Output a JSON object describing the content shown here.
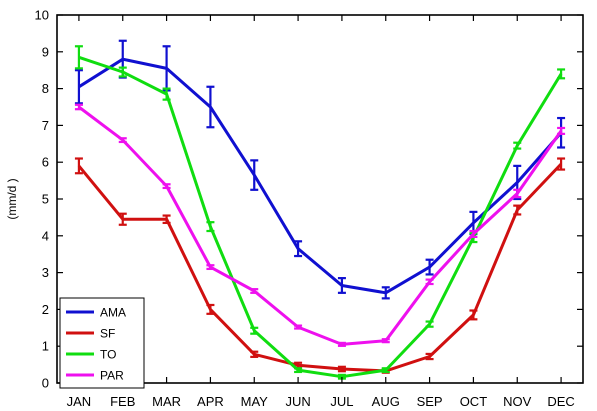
{
  "chart_data": {
    "type": "line",
    "title": "",
    "xlabel": "",
    "ylabel": "(mm/d )",
    "categories": [
      "JAN",
      "FEB",
      "MAR",
      "APR",
      "MAY",
      "JUN",
      "JUL",
      "AUG",
      "SEP",
      "OCT",
      "NOV",
      "DEC"
    ],
    "ylim": [
      0,
      10
    ],
    "yticks": [
      0,
      1,
      2,
      3,
      4,
      5,
      6,
      7,
      8,
      9,
      10
    ],
    "grid": false,
    "legend_position": "bottom-left",
    "series": [
      {
        "name": "AMA",
        "color": "#1010d0",
        "values": [
          8.05,
          8.8,
          8.55,
          7.5,
          5.65,
          3.65,
          2.65,
          2.45,
          3.15,
          4.35,
          5.45,
          6.8
        ],
        "errors": [
          0.45,
          0.5,
          0.6,
          0.55,
          0.4,
          0.2,
          0.2,
          0.15,
          0.2,
          0.3,
          0.45,
          0.4
        ]
      },
      {
        "name": "SF",
        "color": "#d01010",
        "values": [
          5.9,
          4.45,
          4.45,
          2.0,
          0.78,
          0.48,
          0.38,
          0.33,
          0.72,
          1.85,
          4.7,
          5.95
        ],
        "errors": [
          0.2,
          0.15,
          0.1,
          0.12,
          0.07,
          0.07,
          0.06,
          0.05,
          0.07,
          0.12,
          0.12,
          0.15
        ]
      },
      {
        "name": "TO",
        "color": "#10dd10",
        "values": [
          8.85,
          8.45,
          7.85,
          4.25,
          1.42,
          0.35,
          0.17,
          0.35,
          1.6,
          3.95,
          6.45,
          8.4
        ],
        "errors": [
          0.3,
          0.12,
          0.15,
          0.12,
          0.08,
          0.05,
          0.05,
          0.05,
          0.07,
          0.12,
          0.08,
          0.12
        ]
      },
      {
        "name": "PAR",
        "color": "#ee10ee",
        "values": [
          7.5,
          6.6,
          5.35,
          3.15,
          2.5,
          1.52,
          1.05,
          1.15,
          2.75,
          4.05,
          5.15,
          6.85
        ],
        "errors": [
          0.06,
          0.05,
          0.05,
          0.05,
          0.05,
          0.04,
          0.04,
          0.04,
          0.06,
          0.08,
          0.1,
          0.08
        ]
      }
    ]
  }
}
